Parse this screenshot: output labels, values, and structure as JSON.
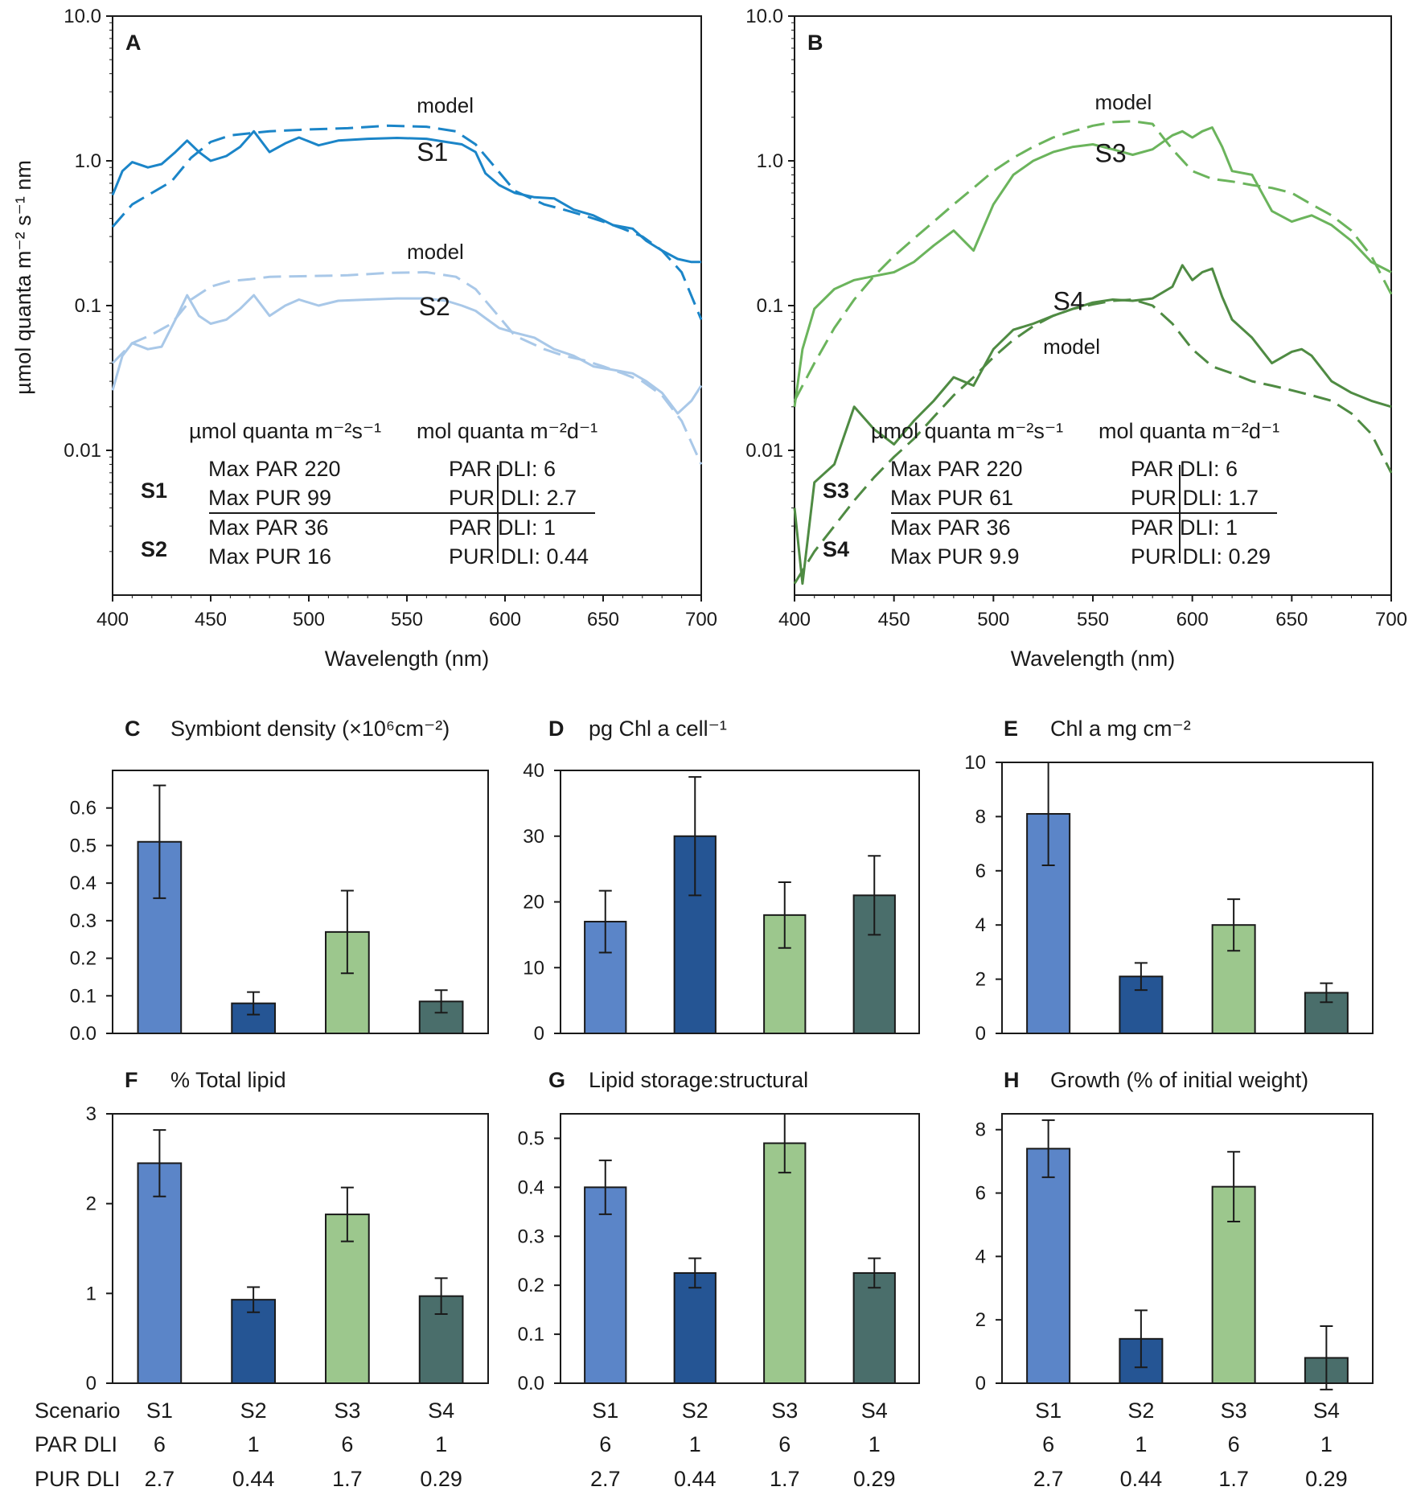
{
  "colors": {
    "S1": "#1b85c8",
    "S2": "#a9c8e8",
    "S3": "#6bb45c",
    "S4": "#4f8b43",
    "bar_S1": "#5b85c8",
    "bar_S2": "#255594",
    "bar_S3": "#9cc78d",
    "bar_S4": "#4a6e6b",
    "axis": "#1a1a1a"
  },
  "spectra": {
    "ylabel": "µmol quanta m⁻² s⁻¹ nm",
    "xlabel": "Wavelength (nm)",
    "y_ticks": [
      "10.0",
      "1.0",
      "0.1",
      "0.01"
    ],
    "x_ticks": [
      "400",
      "450",
      "500",
      "550",
      "600",
      "650",
      "700"
    ],
    "model_label": "model",
    "A": {
      "letter": "A",
      "s_hi": "S1",
      "s_lo": "S2",
      "table": {
        "left_header": "µmol quanta m⁻²s⁻¹",
        "right_header": "mol quanta m⁻²d⁻¹",
        "rows": [
          {
            "scenario": "S1",
            "l1": "Max PAR 220",
            "l2": "Max PUR 99",
            "r1": "PAR DLI: 6",
            "r2": "PUR DLI: 2.7"
          },
          {
            "scenario": "S2",
            "l1": "Max PAR 36",
            "l2": "Max PUR 16",
            "r1": "PAR DLI: 1",
            "r2": "PUR DLI: 0.44"
          }
        ]
      }
    },
    "B": {
      "letter": "B",
      "s_hi": "S3",
      "s_lo": "S4",
      "table": {
        "left_header": "µmol quanta m⁻²s⁻¹",
        "right_header": "mol quanta m⁻²d⁻¹",
        "rows": [
          {
            "scenario": "S3",
            "l1": "Max PAR 220",
            "l2": "Max PUR 61",
            "r1": "PAR DLI: 6",
            "r2": "PUR DLI: 1.7"
          },
          {
            "scenario": "S4",
            "l1": "Max PAR 36",
            "l2": "Max PUR 9.9",
            "r1": "PAR DLI: 1",
            "r2": "PUR DLI: 0.29"
          }
        ]
      }
    }
  },
  "chart_data": [
    {
      "panel": "A",
      "type": "line",
      "xlabel": "Wavelength (nm)",
      "ylabel": "µmol quanta m-2 s-1 nm",
      "xlim": [
        400,
        700
      ],
      "ylim": [
        0.001,
        10
      ],
      "yscale": "log",
      "series": [
        {
          "name": "S1",
          "style": "solid",
          "x": [
            400,
            405,
            410,
            418,
            425,
            432,
            438,
            444,
            450,
            458,
            465,
            472,
            480,
            488,
            495,
            505,
            515,
            530,
            545,
            560,
            570,
            578,
            585,
            590,
            597,
            605,
            615,
            625,
            635,
            645,
            655,
            665,
            672,
            680,
            688,
            695,
            700
          ],
          "y": [
            0.58,
            0.85,
            0.98,
            0.9,
            0.95,
            1.15,
            1.38,
            1.15,
            1.0,
            1.08,
            1.25,
            1.6,
            1.15,
            1.32,
            1.45,
            1.28,
            1.38,
            1.42,
            1.44,
            1.42,
            1.35,
            1.3,
            1.15,
            0.82,
            0.68,
            0.6,
            0.56,
            0.55,
            0.46,
            0.42,
            0.36,
            0.34,
            0.28,
            0.24,
            0.21,
            0.2,
            0.2
          ]
        },
        {
          "name": "S1 model",
          "style": "dashed",
          "x": [
            400,
            410,
            420,
            430,
            440,
            450,
            460,
            470,
            480,
            500,
            520,
            540,
            560,
            575,
            585,
            595,
            605,
            620,
            630,
            640,
            650,
            660,
            670,
            680,
            690,
            700
          ],
          "y": [
            0.35,
            0.5,
            0.6,
            0.72,
            1.05,
            1.35,
            1.5,
            1.55,
            1.6,
            1.65,
            1.68,
            1.75,
            1.72,
            1.6,
            1.3,
            0.9,
            0.62,
            0.5,
            0.46,
            0.42,
            0.38,
            0.34,
            0.3,
            0.24,
            0.17,
            0.08
          ]
        },
        {
          "name": "S2",
          "style": "solid",
          "x": [
            400,
            405,
            410,
            418,
            425,
            432,
            438,
            444,
            450,
            458,
            465,
            472,
            480,
            488,
            495,
            505,
            515,
            530,
            545,
            560,
            570,
            578,
            585,
            590,
            597,
            605,
            615,
            625,
            635,
            645,
            655,
            665,
            672,
            680,
            688,
            695,
            700
          ],
          "y": [
            0.026,
            0.045,
            0.055,
            0.05,
            0.052,
            0.08,
            0.118,
            0.085,
            0.075,
            0.08,
            0.095,
            0.118,
            0.085,
            0.1,
            0.11,
            0.1,
            0.108,
            0.11,
            0.112,
            0.112,
            0.108,
            0.1,
            0.092,
            0.082,
            0.07,
            0.065,
            0.06,
            0.05,
            0.045,
            0.038,
            0.036,
            0.034,
            0.03,
            0.025,
            0.018,
            0.022,
            0.028
          ]
        },
        {
          "name": "S2 model",
          "style": "dashed",
          "x": [
            400,
            410,
            420,
            430,
            440,
            450,
            460,
            470,
            480,
            500,
            520,
            540,
            560,
            575,
            585,
            595,
            605,
            620,
            630,
            640,
            650,
            660,
            670,
            680,
            690,
            700
          ],
          "y": [
            0.04,
            0.055,
            0.063,
            0.075,
            0.11,
            0.135,
            0.148,
            0.152,
            0.158,
            0.16,
            0.162,
            0.168,
            0.17,
            0.158,
            0.13,
            0.09,
            0.062,
            0.05,
            0.045,
            0.042,
            0.038,
            0.034,
            0.03,
            0.024,
            0.016,
            0.008
          ]
        }
      ]
    },
    {
      "panel": "B",
      "type": "line",
      "xlabel": "Wavelength (nm)",
      "ylabel": "µmol quanta m-2 s-1 nm",
      "xlim": [
        400,
        700
      ],
      "ylim": [
        0.001,
        10
      ],
      "yscale": "log",
      "series": [
        {
          "name": "S3",
          "style": "solid",
          "x": [
            400,
            404,
            410,
            420,
            430,
            440,
            450,
            460,
            470,
            480,
            490,
            500,
            510,
            520,
            530,
            540,
            550,
            560,
            570,
            580,
            590,
            595,
            600,
            605,
            610,
            615,
            620,
            630,
            640,
            650,
            655,
            660,
            670,
            680,
            690,
            700
          ],
          "y": [
            0.02,
            0.05,
            0.095,
            0.13,
            0.15,
            0.16,
            0.17,
            0.2,
            0.26,
            0.33,
            0.24,
            0.5,
            0.8,
            1.0,
            1.15,
            1.25,
            1.3,
            1.2,
            1.1,
            1.2,
            1.5,
            1.6,
            1.45,
            1.6,
            1.7,
            1.25,
            0.85,
            0.8,
            0.45,
            0.38,
            0.4,
            0.42,
            0.36,
            0.28,
            0.2,
            0.17
          ]
        },
        {
          "name": "S3 model",
          "style": "dashed",
          "x": [
            400,
            410,
            420,
            430,
            440,
            450,
            460,
            470,
            480,
            490,
            500,
            510,
            520,
            530,
            540,
            550,
            560,
            570,
            580,
            590,
            600,
            610,
            620,
            630,
            640,
            650,
            660,
            670,
            680,
            690,
            700
          ],
          "y": [
            0.022,
            0.04,
            0.07,
            0.11,
            0.16,
            0.22,
            0.29,
            0.38,
            0.5,
            0.65,
            0.85,
            1.05,
            1.25,
            1.45,
            1.6,
            1.75,
            1.85,
            1.88,
            1.8,
            1.2,
            0.85,
            0.75,
            0.72,
            0.68,
            0.65,
            0.6,
            0.5,
            0.42,
            0.33,
            0.22,
            0.12
          ]
        },
        {
          "name": "S4",
          "style": "solid",
          "x": [
            400,
            404,
            410,
            420,
            430,
            440,
            450,
            460,
            470,
            480,
            490,
            500,
            510,
            520,
            530,
            540,
            550,
            560,
            570,
            580,
            590,
            595,
            600,
            605,
            610,
            615,
            620,
            630,
            640,
            650,
            655,
            660,
            670,
            680,
            690,
            700
          ],
          "y": [
            0.004,
            0.0012,
            0.006,
            0.008,
            0.02,
            0.014,
            0.011,
            0.016,
            0.022,
            0.032,
            0.028,
            0.05,
            0.068,
            0.075,
            0.085,
            0.095,
            0.105,
            0.11,
            0.108,
            0.112,
            0.135,
            0.19,
            0.15,
            0.17,
            0.18,
            0.115,
            0.08,
            0.06,
            0.04,
            0.048,
            0.05,
            0.045,
            0.03,
            0.025,
            0.022,
            0.02
          ]
        },
        {
          "name": "S4 model",
          "style": "dashed",
          "x": [
            400,
            410,
            420,
            430,
            440,
            450,
            460,
            470,
            480,
            490,
            500,
            510,
            520,
            530,
            540,
            550,
            560,
            570,
            580,
            590,
            600,
            610,
            620,
            630,
            640,
            650,
            660,
            670,
            680,
            690,
            700
          ],
          "y": [
            0.0012,
            0.002,
            0.003,
            0.0045,
            0.0065,
            0.009,
            0.012,
            0.017,
            0.024,
            0.032,
            0.044,
            0.058,
            0.072,
            0.085,
            0.095,
            0.102,
            0.108,
            0.11,
            0.1,
            0.075,
            0.05,
            0.038,
            0.034,
            0.03,
            0.028,
            0.026,
            0.024,
            0.022,
            0.018,
            0.013,
            0.007
          ]
        }
      ]
    },
    {
      "panel": "C",
      "type": "bar",
      "title": "Symbiont density (×10⁶cm⁻²)",
      "categories": [
        "S1",
        "S2",
        "S3",
        "S4"
      ],
      "values": [
        0.51,
        0.08,
        0.27,
        0.085
      ],
      "errors": [
        0.15,
        0.03,
        0.11,
        0.03
      ],
      "ylim": [
        0,
        0.7
      ],
      "yticks": [
        0.0,
        0.1,
        0.2,
        0.3,
        0.4,
        0.5,
        0.6
      ],
      "tick_decimals": 1
    },
    {
      "panel": "D",
      "type": "bar",
      "title": "pg Chl a cell⁻¹",
      "categories": [
        "S1",
        "S2",
        "S3",
        "S4"
      ],
      "values": [
        17,
        30,
        18,
        21
      ],
      "errors": [
        4.7,
        9.0,
        5.0,
        6.0
      ],
      "ylim": [
        0,
        40
      ],
      "yticks": [
        0,
        10,
        20,
        30,
        40
      ],
      "tick_decimals": 0
    },
    {
      "panel": "E",
      "type": "bar",
      "title": "Chl a mg cm⁻²",
      "categories": [
        "S1",
        "S2",
        "S3",
        "S4"
      ],
      "values": [
        8.1,
        2.1,
        4.0,
        1.5
      ],
      "errors": [
        1.9,
        0.5,
        0.95,
        0.35
      ],
      "ylim": [
        0,
        10
      ],
      "yticks": [
        0,
        2,
        4,
        6,
        8,
        10
      ],
      "tick_decimals": 0
    },
    {
      "panel": "F",
      "type": "bar",
      "title": "% Total lipid",
      "categories": [
        "S1",
        "S2",
        "S3",
        "S4"
      ],
      "values": [
        2.45,
        0.93,
        1.88,
        0.97
      ],
      "errors": [
        0.37,
        0.14,
        0.3,
        0.2
      ],
      "ylim": [
        0,
        3
      ],
      "yticks": [
        0,
        1,
        2,
        3
      ],
      "tick_decimals": 0
    },
    {
      "panel": "G",
      "type": "bar",
      "title": "Lipid storage:structural",
      "categories": [
        "S1",
        "S2",
        "S3",
        "S4"
      ],
      "values": [
        0.4,
        0.225,
        0.49,
        0.225
      ],
      "errors": [
        0.055,
        0.03,
        0.06,
        0.03
      ],
      "ylim": [
        0,
        0.55
      ],
      "yticks": [
        0.0,
        0.1,
        0.2,
        0.3,
        0.4,
        0.5
      ],
      "tick_decimals": 1
    },
    {
      "panel": "H",
      "type": "bar",
      "title": "Growth (% of initial weight)",
      "categories": [
        "S1",
        "S2",
        "S3",
        "S4"
      ],
      "values": [
        7.4,
        1.4,
        6.2,
        0.8
      ],
      "errors": [
        0.9,
        0.9,
        1.1,
        1.0
      ],
      "ylim": [
        0,
        8.5
      ],
      "yticks": [
        0,
        2,
        4,
        6,
        8
      ],
      "tick_decimals": 0
    }
  ],
  "scenario_table": {
    "labels": [
      "Scenario",
      "PAR DLI",
      "PUR DLI"
    ],
    "scenarios": [
      "S1",
      "S2",
      "S3",
      "S4"
    ],
    "par_dli": [
      "6",
      "1",
      "6",
      "1"
    ],
    "pur_dli": [
      "2.7",
      "0.44",
      "1.7",
      "0.29"
    ]
  }
}
